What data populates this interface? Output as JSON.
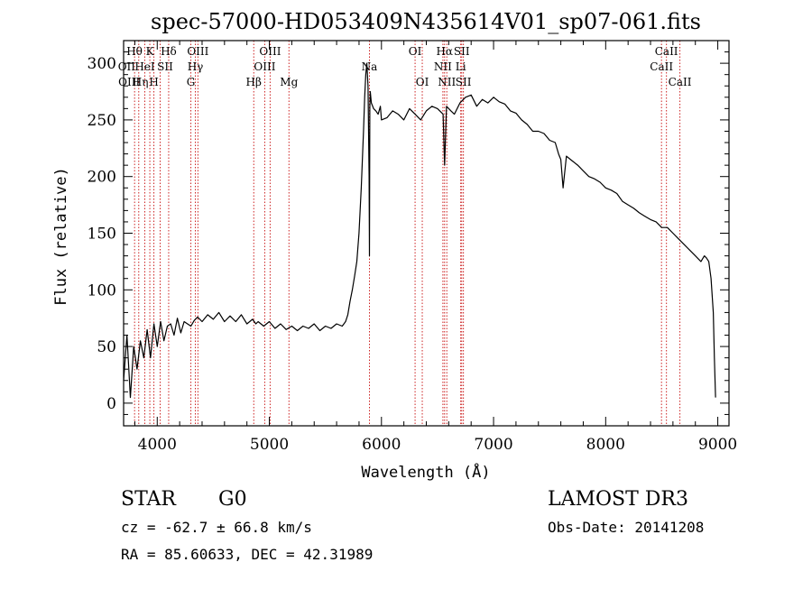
{
  "chart_data": {
    "type": "line",
    "title": "spec-57000-HD053409N435614V01_sp07-061.fits",
    "xlabel": "Wavelength (Å)",
    "ylabel": "Flux (relative)",
    "xlim": [
      3700,
      9100
    ],
    "ylim": [
      -20,
      320
    ],
    "xticks": [
      4000,
      5000,
      6000,
      7000,
      8000,
      9000
    ],
    "yticks": [
      0,
      50,
      100,
      150,
      200,
      250,
      300
    ],
    "series": [
      {
        "name": "spectrum",
        "x": [
          3700,
          3730,
          3760,
          3790,
          3820,
          3850,
          3880,
          3910,
          3940,
          3970,
          4000,
          4030,
          4060,
          4090,
          4120,
          4150,
          4180,
          4210,
          4240,
          4270,
          4300,
          4330,
          4360,
          4400,
          4450,
          4500,
          4550,
          4600,
          4650,
          4700,
          4750,
          4800,
          4850,
          4880,
          4900,
          4950,
          5000,
          5050,
          5100,
          5150,
          5200,
          5250,
          5300,
          5350,
          5400,
          5450,
          5500,
          5550,
          5600,
          5650,
          5680,
          5700,
          5720,
          5740,
          5760,
          5780,
          5800,
          5820,
          5840,
          5850,
          5860,
          5870,
          5880,
          5890,
          5893,
          5896,
          5900,
          5910,
          5930,
          5950,
          5970,
          5990,
          6000,
          6050,
          6100,
          6150,
          6200,
          6250,
          6300,
          6350,
          6400,
          6450,
          6500,
          6550,
          6563,
          6580,
          6620,
          6650,
          6700,
          6750,
          6800,
          6850,
          6900,
          6950,
          7000,
          7050,
          7100,
          7150,
          7200,
          7250,
          7300,
          7350,
          7400,
          7450,
          7500,
          7550,
          7580,
          7600,
          7620,
          7650,
          7700,
          7750,
          7800,
          7850,
          7900,
          7950,
          8000,
          8050,
          8100,
          8150,
          8200,
          8250,
          8300,
          8350,
          8400,
          8450,
          8500,
          8550,
          8600,
          8650,
          8700,
          8750,
          8800,
          8850,
          8880,
          8900,
          8920,
          8940,
          8960,
          8970,
          8980
        ],
        "y": [
          20,
          60,
          5,
          50,
          30,
          55,
          40,
          65,
          40,
          70,
          50,
          72,
          55,
          68,
          70,
          60,
          75,
          62,
          72,
          70,
          68,
          73,
          76,
          72,
          78,
          74,
          80,
          72,
          77,
          72,
          78,
          70,
          74,
          70,
          72,
          68,
          72,
          66,
          70,
          65,
          68,
          64,
          68,
          66,
          70,
          64,
          68,
          66,
          70,
          68,
          72,
          78,
          90,
          100,
          112,
          125,
          150,
          190,
          240,
          270,
          290,
          300,
          280,
          200,
          130,
          260,
          275,
          265,
          260,
          258,
          255,
          262,
          250,
          252,
          258,
          255,
          250,
          260,
          255,
          250,
          258,
          262,
          260,
          255,
          210,
          262,
          258,
          255,
          265,
          270,
          272,
          262,
          268,
          265,
          270,
          266,
          264,
          258,
          256,
          250,
          246,
          240,
          240,
          238,
          232,
          230,
          220,
          215,
          190,
          218,
          214,
          210,
          205,
          200,
          198,
          195,
          190,
          188,
          185,
          178,
          175,
          172,
          168,
          165,
          162,
          160,
          155,
          155,
          150,
          145,
          140,
          135,
          130,
          125,
          130,
          128,
          125,
          110,
          80,
          40,
          5
        ]
      }
    ],
    "line_markers": {
      "blue_group": [
        3798,
        3835,
        3889,
        3934,
        3970,
        4026,
        4102,
        4300,
        4340,
        4363,
        4861,
        4959,
        5007,
        5175
      ],
      "red_group": [
        5893,
        6300,
        6364,
        6548,
        6563,
        6583,
        6707,
        6716,
        6731,
        8498,
        8542,
        8662
      ]
    },
    "line_labels": [
      {
        "text": "Hθ",
        "wavelength": 3797,
        "row": 1
      },
      {
        "text": "OII",
        "wavelength": 3727,
        "row": 2
      },
      {
        "text": "OIII",
        "wavelength": 3750,
        "row": 3
      },
      {
        "text": "K",
        "wavelength": 3934,
        "row": 1
      },
      {
        "text": "HeI",
        "wavelength": 3889,
        "row": 2
      },
      {
        "text": "Hη",
        "wavelength": 3850,
        "row": 3
      },
      {
        "text": "H",
        "wavelength": 3970,
        "row": 3
      },
      {
        "text": "Hδ",
        "wavelength": 4102,
        "row": 1
      },
      {
        "text": "SII",
        "wavelength": 4070,
        "row": 2
      },
      {
        "text": "OIII",
        "wavelength": 4363,
        "row": 1
      },
      {
        "text": "Hγ",
        "wavelength": 4340,
        "row": 2
      },
      {
        "text": "G",
        "wavelength": 4300,
        "row": 3
      },
      {
        "text": "OIII",
        "wavelength": 5007,
        "row": 1
      },
      {
        "text": "OIII",
        "wavelength": 4959,
        "row": 2
      },
      {
        "text": "Hβ",
        "wavelength": 4861,
        "row": 3
      },
      {
        "text": "Mg",
        "wavelength": 5175,
        "row": 3
      },
      {
        "text": "Na",
        "wavelength": 5893,
        "row": 2
      },
      {
        "text": "OI",
        "wavelength": 6300,
        "row": 1
      },
      {
        "text": "OI",
        "wavelength": 6364,
        "row": 3
      },
      {
        "text": "Hα",
        "wavelength": 6563,
        "row": 1
      },
      {
        "text": "SII",
        "wavelength": 6716,
        "row": 1
      },
      {
        "text": "NII",
        "wavelength": 6548,
        "row": 2
      },
      {
        "text": "Li",
        "wavelength": 6707,
        "row": 2
      },
      {
        "text": "NII",
        "wavelength": 6583,
        "row": 3
      },
      {
        "text": "SII",
        "wavelength": 6731,
        "row": 3
      },
      {
        "text": "CaII",
        "wavelength": 8542,
        "row": 1
      },
      {
        "text": "CaII",
        "wavelength": 8498,
        "row": 2
      },
      {
        "text": "CaII",
        "wavelength": 8662,
        "row": 3
      }
    ]
  },
  "info": {
    "object_class": "STAR",
    "subclass": "G0",
    "survey": "LAMOST DR3",
    "redshift": "cz = -62.7 ± 66.8 km/s",
    "obs_date": "Obs-Date: 20141208",
    "coords": "RA =  85.60633, DEC =  42.31989"
  },
  "colors": {
    "spectrum": "#000000",
    "blue_lines": "#cc2222",
    "red_lines": "#cc2222",
    "axes": "#000000"
  }
}
